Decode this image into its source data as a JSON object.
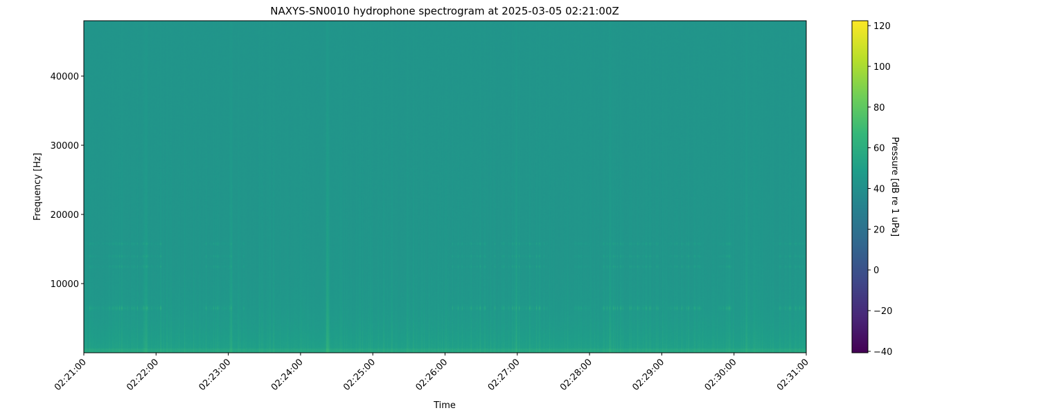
{
  "chart_data": {
    "type": "heatmap",
    "title": "NAXYS-SN0010 hydrophone spectrogram at 2025-03-05 02:21:00Z",
    "xlabel": "Time",
    "ylabel": "Frequency [Hz]",
    "x_range": [
      "02:21:00",
      "02:31:00"
    ],
    "x_ticks": [
      "02:21:00",
      "02:22:00",
      "02:23:00",
      "02:24:00",
      "02:25:00",
      "02:26:00",
      "02:27:00",
      "02:28:00",
      "02:29:00",
      "02:30:00",
      "02:31:00"
    ],
    "y_range": [
      0,
      48000
    ],
    "y_ticks": [
      10000,
      20000,
      30000,
      40000
    ],
    "y_tick_labels": [
      "10000",
      "20000",
      "30000",
      "40000"
    ],
    "colormap": "viridis",
    "colorbar": {
      "label": "Pressure [dB re 1 uPa]",
      "range": [
        -40.7,
        122.4
      ],
      "ticks": [
        120,
        100,
        80,
        60,
        40,
        20,
        0,
        -20,
        -40
      ],
      "tick_labels": [
        "120",
        "100",
        "80",
        "60",
        "40",
        "20",
        "0",
        "−20",
        "−40"
      ]
    },
    "background_level_db": {
      "high_freq": 44,
      "low_freq": 55
    },
    "tonal_bands_hz": [
      6500,
      12500,
      14000,
      15800
    ],
    "broadband_events": [
      "02:21:51",
      "02:23:02",
      "02:24:22",
      "02:26:59",
      "02:28:17",
      "02:30:10"
    ],
    "grid": false
  }
}
